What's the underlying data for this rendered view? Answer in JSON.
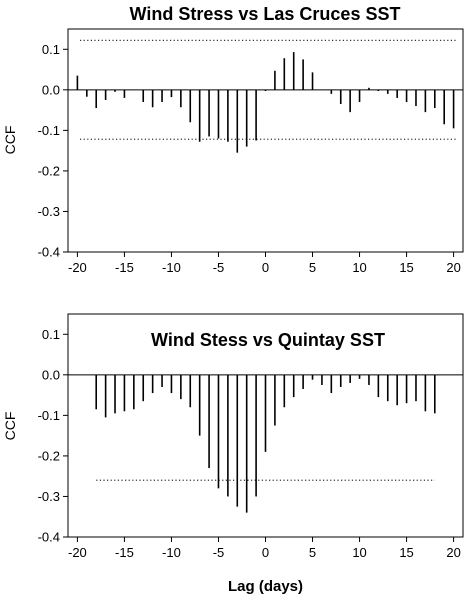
{
  "chart_data": [
    {
      "type": "bar",
      "title": "Wind Stress  vs  Las Cruces SST",
      "ylabel": "CCF",
      "xlabel": "",
      "xlim": [
        -21,
        21
      ],
      "ylim": [
        -0.4,
        0.15
      ],
      "xticks": [
        -20,
        -15,
        -10,
        -5,
        0,
        5,
        10,
        15,
        20
      ],
      "yticks": [
        0.1,
        0.0,
        -0.1,
        -0.2,
        -0.3,
        -0.4
      ],
      "ytick_labels": [
        "0.1",
        "0.0",
        "-0.1",
        "-0.2",
        "-0.3",
        "-0.4"
      ],
      "confidence_limits": [
        0.122,
        -0.122
      ],
      "x": [
        -20,
        -19,
        -18,
        -17,
        -16,
        -15,
        -14,
        -13,
        -12,
        -11,
        -10,
        -9,
        -8,
        -7,
        -6,
        -5,
        -4,
        -3,
        -2,
        -1,
        0,
        1,
        2,
        3,
        4,
        5,
        6,
        7,
        8,
        9,
        10,
        11,
        12,
        13,
        14,
        15,
        16,
        17,
        18,
        19,
        20
      ],
      "values": [
        0.035,
        -0.017,
        -0.045,
        -0.025,
        -0.005,
        -0.02,
        0.0,
        -0.03,
        -0.043,
        -0.03,
        -0.018,
        -0.043,
        -0.08,
        -0.128,
        -0.115,
        -0.12,
        -0.128,
        -0.155,
        -0.14,
        -0.125,
        -0.003,
        0.047,
        0.078,
        0.093,
        0.075,
        0.043,
        0.0,
        -0.01,
        -0.035,
        -0.055,
        -0.03,
        0.005,
        -0.003,
        -0.01,
        -0.02,
        -0.03,
        -0.04,
        -0.055,
        -0.045,
        -0.085,
        -0.095
      ],
      "grid": false
    },
    {
      "type": "bar",
      "title": "Wind Stess  vs  Quintay SST",
      "ylabel": "CCF",
      "xlabel": "Lag (days)",
      "xlim": [
        -21,
        21
      ],
      "ylim": [
        -0.4,
        0.15
      ],
      "xticks": [
        -20,
        -15,
        -10,
        -5,
        0,
        5,
        10,
        15,
        20
      ],
      "yticks": [
        0.1,
        0.0,
        -0.1,
        -0.2,
        -0.3,
        -0.4
      ],
      "ytick_labels": [
        "0.1",
        "0.0",
        "-0.1",
        "-0.2",
        "-0.3",
        "-0.4"
      ],
      "confidence_limits": [
        -0.26
      ],
      "x": [
        -18,
        -17,
        -16,
        -15,
        -14,
        -13,
        -12,
        -11,
        -10,
        -9,
        -8,
        -7,
        -6,
        -5,
        -4,
        -3,
        -2,
        -1,
        0,
        1,
        2,
        3,
        4,
        5,
        6,
        7,
        8,
        9,
        10,
        11,
        12,
        13,
        14,
        15,
        16,
        17,
        18
      ],
      "values": [
        -0.085,
        -0.105,
        -0.095,
        -0.09,
        -0.085,
        -0.065,
        -0.045,
        -0.03,
        -0.045,
        -0.06,
        -0.08,
        -0.15,
        -0.23,
        -0.28,
        -0.3,
        -0.325,
        -0.34,
        -0.3,
        -0.19,
        -0.125,
        -0.08,
        -0.055,
        -0.035,
        -0.012,
        -0.025,
        -0.045,
        -0.03,
        -0.02,
        -0.01,
        -0.025,
        -0.055,
        -0.065,
        -0.075,
        -0.07,
        -0.065,
        -0.09,
        -0.095
      ],
      "grid": false
    }
  ]
}
